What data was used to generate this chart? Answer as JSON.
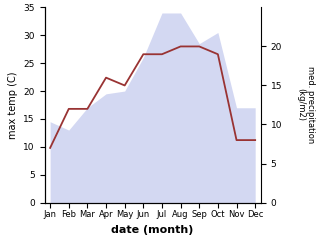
{
  "months": [
    "Jan",
    "Feb",
    "Mar",
    "Apr",
    "May",
    "Jun",
    "Jul",
    "Aug",
    "Sep",
    "Oct",
    "Nov",
    "Dec"
  ],
  "temperature": [
    14.5,
    13.0,
    17.0,
    19.5,
    20.0,
    26.0,
    34.0,
    34.0,
    28.5,
    30.5,
    17.0,
    17.0
  ],
  "precipitation": [
    7.0,
    12.0,
    12.0,
    16.0,
    15.0,
    19.0,
    19.0,
    20.0,
    20.0,
    19.0,
    8.0,
    8.0
  ],
  "temp_ylim": [
    0,
    35
  ],
  "temp_color_fill": "#b0b8e8",
  "precip_color": "#993333",
  "xlabel": "date (month)",
  "ylabel_left": "max temp (C)",
  "ylabel_right": "med. precipitation\n(kg/m2)",
  "right_yticks": [
    0,
    5,
    10,
    15,
    20
  ],
  "right_ylim": [
    0,
    25
  ],
  "left_yticks": [
    0,
    5,
    10,
    15,
    20,
    25,
    30,
    35
  ],
  "fill_alpha": 0.55,
  "precip_lw": 1.3
}
